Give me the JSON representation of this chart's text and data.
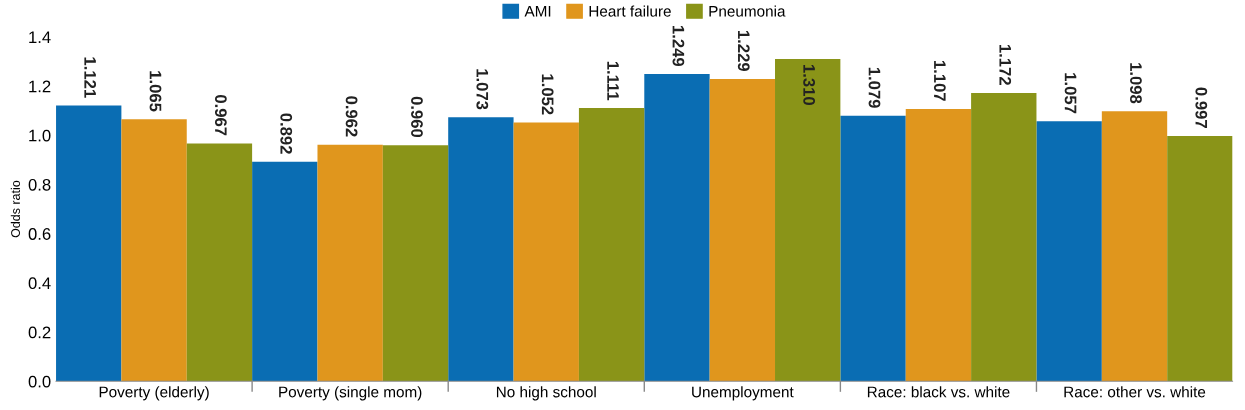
{
  "chart_data": {
    "type": "bar",
    "ylabel": "Odds ratio",
    "categories": [
      "Poverty (elderly)",
      "Poverty (single mom)",
      "No high school",
      "Unemployment",
      "Race: black vs. white",
      "Race: other vs. white"
    ],
    "series": [
      {
        "name": "AMI",
        "color": "#0a6db3",
        "values": [
          1.121,
          0.892,
          1.073,
          1.249,
          1.079,
          1.057
        ],
        "value_labels": [
          "1.121",
          "0.892",
          "1.073",
          "1.249",
          "1.079",
          "1.057"
        ]
      },
      {
        "name": "Heart failure",
        "color": "#e0961d",
        "values": [
          1.065,
          0.962,
          1.052,
          1.229,
          1.107,
          1.098
        ],
        "value_labels": [
          "1.065",
          "0.962",
          "1.052",
          "1.229",
          "1.107",
          "1.098"
        ]
      },
      {
        "name": "Pneumonia",
        "color": "#8a9418",
        "values": [
          0.967,
          0.96,
          1.111,
          1.31,
          1.172,
          0.997
        ],
        "value_labels": [
          "0.967",
          "0.960",
          "1.111",
          "1.310",
          "1.172",
          "0.997"
        ]
      }
    ],
    "ylim": [
      0,
      1.4
    ],
    "yticks": [
      {
        "value": 0,
        "label": "0.0"
      },
      {
        "value": 0.2,
        "label": "0.2"
      },
      {
        "value": 0.4,
        "label": "0.4"
      },
      {
        "value": 0.6,
        "label": "0.6"
      },
      {
        "value": 0.8,
        "label": "0.8"
      },
      {
        "value": 1.0,
        "label": "1.0"
      },
      {
        "value": 1.2,
        "label": "1.2"
      },
      {
        "value": 1.4,
        "label": "1.4"
      }
    ],
    "legend": "top",
    "grid": false
  }
}
